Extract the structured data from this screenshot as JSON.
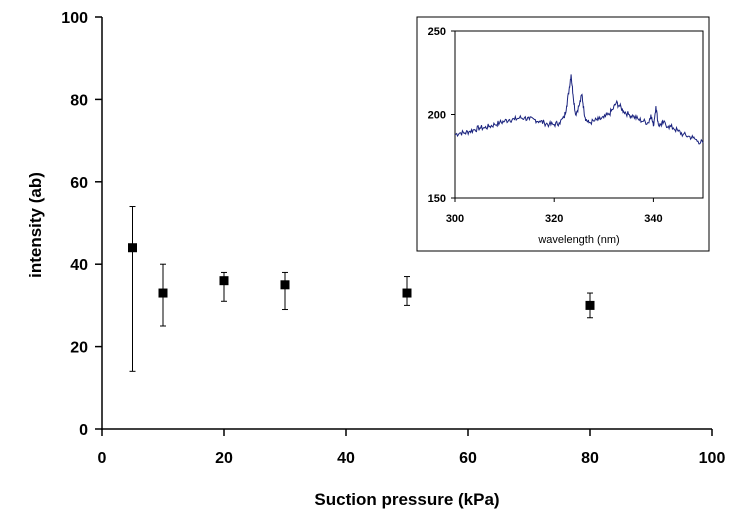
{
  "chart_data": [
    {
      "type": "scatter",
      "title": "",
      "xlabel": "Suction pressure (kPa)",
      "ylabel": "intensity (ab)",
      "xlim": [
        0,
        100
      ],
      "ylim": [
        0,
        100
      ],
      "xticks": [
        "0",
        "20",
        "40",
        "60",
        "80",
        "100"
      ],
      "yticks": [
        "0",
        "20",
        "40",
        "60",
        "80",
        "100"
      ],
      "grid": false,
      "series": [
        {
          "x": [
            5,
            10,
            20,
            30,
            50,
            80
          ],
          "y": [
            44,
            33,
            36,
            35,
            33,
            30
          ],
          "error_low": [
            14,
            25,
            31,
            29,
            30,
            27
          ],
          "error_high": [
            54,
            40,
            38,
            38,
            37,
            33
          ],
          "marker": "square",
          "color": "#000000"
        }
      ]
    },
    {
      "type": "line",
      "title": "",
      "xlabel": "wavelength (nm)",
      "ylabel": "",
      "xlim": [
        300,
        350
      ],
      "ylim": [
        150,
        250
      ],
      "xticks": [
        "300",
        "320",
        "340"
      ],
      "yticks": [
        "150",
        "200",
        "250"
      ],
      "grid": false,
      "series": [
        {
          "color": "#1a237e",
          "x": [
            300,
            301,
            302,
            303,
            304,
            305,
            306,
            307,
            308,
            309,
            310,
            311,
            312,
            313,
            314,
            315,
            316,
            317,
            318,
            319,
            320,
            321,
            322,
            322.5,
            323,
            323.4,
            323.8,
            324.3,
            325,
            325.6,
            326,
            326.4,
            327,
            328,
            329,
            330,
            331,
            331.8,
            332.5,
            333.2,
            334,
            335,
            336,
            337,
            338,
            339,
            339.5,
            340,
            340.5,
            341,
            341.5,
            342,
            343,
            344,
            345,
            346,
            347,
            348,
            349,
            350
          ],
          "y": [
            188,
            189,
            189,
            190,
            191,
            192,
            192,
            193,
            194,
            195,
            196,
            197,
            197,
            198,
            198,
            197,
            197,
            196,
            195,
            194,
            194,
            195,
            198,
            205,
            215,
            224,
            212,
            200,
            205,
            212,
            202,
            197,
            195,
            196,
            197,
            198,
            200,
            203,
            207,
            205,
            202,
            200,
            199,
            197,
            196,
            195,
            200,
            193,
            205,
            194,
            194,
            195,
            193,
            192,
            190,
            188,
            187,
            186,
            184,
            183
          ]
        }
      ]
    }
  ]
}
